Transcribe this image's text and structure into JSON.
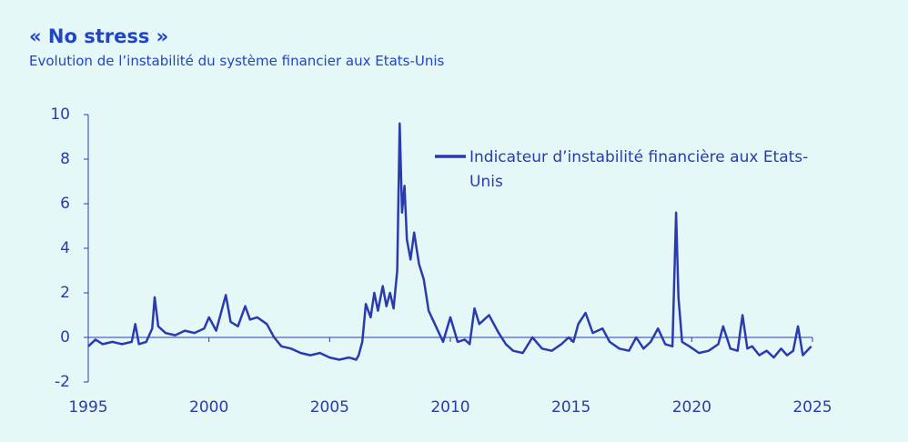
{
  "chart_data": {
    "type": "line",
    "title": "« No stress »",
    "subtitle": "Evolution de l’instabilité du système financier aux Etats-Unis",
    "x": [
      1995.0,
      1995.3,
      1995.6,
      1996.0,
      1996.4,
      1996.8,
      1996.95,
      1997.1,
      1997.4,
      1997.65,
      1997.75,
      1997.9,
      1998.2,
      1998.6,
      1999.0,
      1999.4,
      1999.8,
      2000.0,
      2000.3,
      2000.7,
      2000.9,
      2001.2,
      2001.5,
      2001.7,
      2002.0,
      2002.4,
      2002.7,
      2003.0,
      2003.4,
      2003.8,
      2004.2,
      2004.6,
      2005.0,
      2005.4,
      2005.8,
      2006.1,
      2006.2,
      2006.35,
      2006.5,
      2006.7,
      2006.85,
      2007.0,
      2007.2,
      2007.35,
      2007.5,
      2007.65,
      2007.8,
      2007.9,
      2008.0,
      2008.1,
      2008.2,
      2008.35,
      2008.5,
      2008.7,
      2008.9,
      2009.1,
      2009.4,
      2009.7,
      2010.0,
      2010.3,
      2010.6,
      2010.8,
      2011.0,
      2011.2,
      2011.6,
      2012.0,
      2012.3,
      2012.6,
      2013.0,
      2013.4,
      2013.8,
      2014.2,
      2014.6,
      2014.9,
      2015.1,
      2015.3,
      2015.6,
      2015.9,
      2016.3,
      2016.6,
      2017.0,
      2017.4,
      2017.7,
      2018.0,
      2018.3,
      2018.6,
      2018.9,
      2019.2,
      2019.35,
      2019.45,
      2019.6,
      2019.9,
      2020.3,
      2020.7,
      2021.1,
      2021.3,
      2021.6,
      2021.9,
      2022.1,
      2022.3,
      2022.5,
      2022.8,
      2023.1,
      2023.4,
      2023.7,
      2023.95,
      2024.2,
      2024.4,
      2024.6,
      2024.95
    ],
    "series": [
      {
        "name": "Indicateur d’instabilité financière aux Etats-Unis",
        "color": "#2a3cad",
        "values": [
          -0.4,
          -0.1,
          -0.3,
          -0.2,
          -0.3,
          -0.2,
          0.6,
          -0.3,
          -0.2,
          0.4,
          1.8,
          0.5,
          0.2,
          0.1,
          0.3,
          0.2,
          0.4,
          0.9,
          0.3,
          1.9,
          0.7,
          0.5,
          1.4,
          0.8,
          0.9,
          0.6,
          0.0,
          -0.4,
          -0.5,
          -0.7,
          -0.8,
          -0.7,
          -0.9,
          -1.0,
          -0.9,
          -1.0,
          -0.8,
          -0.2,
          1.5,
          0.9,
          2.0,
          1.2,
          2.3,
          1.4,
          2.0,
          1.3,
          3.0,
          9.6,
          5.6,
          6.8,
          4.4,
          3.5,
          4.7,
          3.3,
          2.6,
          1.2,
          0.5,
          -0.2,
          0.9,
          -0.2,
          -0.1,
          -0.3,
          1.3,
          0.6,
          1.0,
          0.2,
          -0.3,
          -0.6,
          -0.7,
          0.0,
          -0.5,
          -0.6,
          -0.3,
          0.0,
          -0.2,
          0.6,
          1.1,
          0.2,
          0.4,
          -0.2,
          -0.5,
          -0.6,
          0.0,
          -0.5,
          -0.2,
          0.4,
          -0.3,
          -0.4,
          5.6,
          1.8,
          -0.2,
          -0.4,
          -0.7,
          -0.6,
          -0.3,
          0.5,
          -0.5,
          -0.6,
          1.0,
          -0.5,
          -0.4,
          -0.8,
          -0.6,
          -0.9,
          -0.5,
          -0.8,
          -0.6,
          0.5,
          -0.8,
          -0.4
        ]
      }
    ],
    "xlim": [
      1995,
      2025
    ],
    "xticks": [
      1995,
      2000,
      2005,
      2010,
      2015,
      2020,
      2025
    ],
    "ylim": [
      -2,
      10
    ],
    "yticks": [
      -2,
      0,
      2,
      4,
      6,
      8,
      10
    ]
  }
}
